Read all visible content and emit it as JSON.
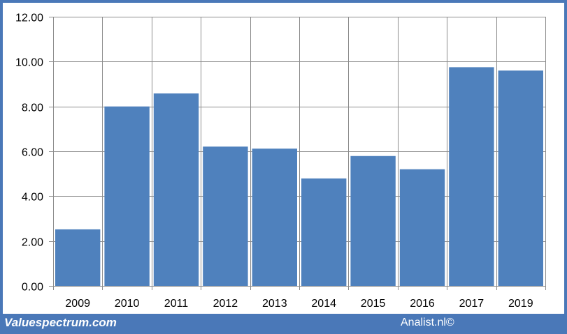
{
  "chart_data": {
    "type": "bar",
    "title": "",
    "xlabel": "",
    "ylabel": "",
    "categories": [
      "2009",
      "2010",
      "2011",
      "2012",
      "2013",
      "2014",
      "2015",
      "2016",
      "2017",
      "2019"
    ],
    "values": [
      2.52,
      8.0,
      8.58,
      6.21,
      6.12,
      4.79,
      5.79,
      5.2,
      9.75,
      9.6
    ],
    "ylim": [
      0,
      12
    ],
    "yticks": [
      "0.00",
      "2.00",
      "4.00",
      "6.00",
      "8.00",
      "10.00",
      "12.00"
    ],
    "ytick_values": [
      0,
      2,
      4,
      6,
      8,
      10,
      12
    ],
    "grid": true,
    "bar_color": "#4f81bd",
    "grid_color": "#8c8c8c"
  },
  "footer": {
    "left_text": "Valuespectrum.com",
    "right_text": "Analist.nl©"
  },
  "colors": {
    "frame": "#4a78b8",
    "background": "#ffffff"
  }
}
